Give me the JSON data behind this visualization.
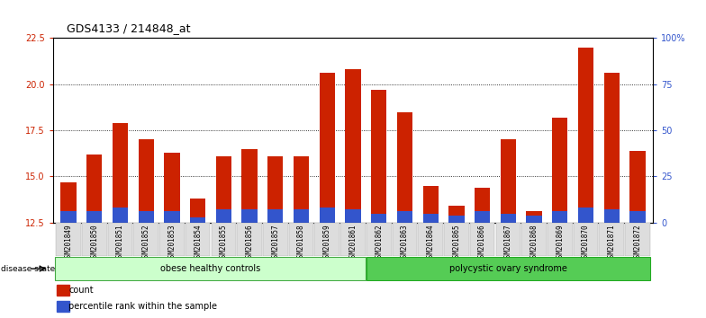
{
  "title": "GDS4133 / 214848_at",
  "samples": [
    "GSM201849",
    "GSM201850",
    "GSM201851",
    "GSM201852",
    "GSM201853",
    "GSM201854",
    "GSM201855",
    "GSM201856",
    "GSM201857",
    "GSM201858",
    "GSM201859",
    "GSM201861",
    "GSM201862",
    "GSM201863",
    "GSM201864",
    "GSM201865",
    "GSM201866",
    "GSM201867",
    "GSM201868",
    "GSM201869",
    "GSM201870",
    "GSM201871",
    "GSM201872"
  ],
  "count_values": [
    14.7,
    16.2,
    17.9,
    17.0,
    16.3,
    13.8,
    16.1,
    16.5,
    16.1,
    16.1,
    20.6,
    20.8,
    19.7,
    18.5,
    14.5,
    13.4,
    14.4,
    17.0,
    13.1,
    18.2,
    22.0,
    20.6,
    16.4
  ],
  "percentile_values": [
    13.1,
    13.1,
    13.3,
    13.1,
    13.1,
    12.8,
    13.2,
    13.2,
    13.2,
    13.2,
    13.3,
    13.2,
    13.0,
    13.1,
    13.0,
    12.9,
    13.1,
    13.0,
    12.9,
    13.1,
    13.3,
    13.2,
    13.1
  ],
  "group1_label": "obese healthy controls",
  "group2_label": "polycystic ovary syndrome",
  "group1_count": 12,
  "group2_count": 11,
  "ylim_left": [
    12.5,
    22.5
  ],
  "yticks_left": [
    12.5,
    15.0,
    17.5,
    20.0,
    22.5
  ],
  "yticks_right": [
    0,
    25,
    50,
    75,
    100
  ],
  "bar_color_red": "#cc2200",
  "bar_color_blue": "#3355cc",
  "group1_color": "#ccffcc",
  "group2_color": "#55cc55",
  "legend_red": "count",
  "legend_blue": "percentile rank within the sample",
  "bar_width": 0.6,
  "background_color": "#ffffff",
  "title_fontsize": 9,
  "tick_fontsize": 7,
  "xlabel_fontsize": 6,
  "group_fontsize": 7,
  "legend_fontsize": 7
}
